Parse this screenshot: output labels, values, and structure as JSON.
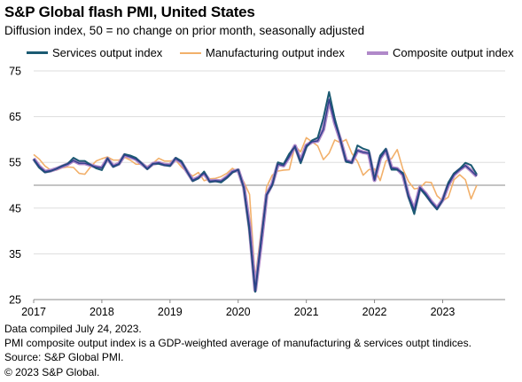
{
  "header": {
    "title": "S&P Global flash PMI, United States",
    "subtitle": "Diffusion index, 50 = no change on prior month, seasonally adjusted"
  },
  "footnotes": {
    "compiled": "Data compiled July 24, 2023.",
    "note": "PMI composite output index is a GDP-weighted average of manufacturing & services outpt tindices.",
    "source": "Source: S&P Global PMI.",
    "copyright": "© 2023 S&P Global."
  },
  "colors": {
    "services": "#1b5a72",
    "manufacturing": "#f2b06a",
    "composite": "#b089c9",
    "composite_core": "#2f3e8c",
    "grid": "#dddddd",
    "reference_line": "#8a8a8a"
  },
  "chart_data": {
    "type": "line",
    "title": "S&P Global flash PMI, United States",
    "subtitle": "Diffusion index, 50 = no change on prior month, seasonally adjusted",
    "x_start": "2017-01",
    "x_end": "2023-07",
    "frequency": "monthly",
    "ylim": [
      25,
      75
    ],
    "yticks": [
      25,
      35,
      45,
      55,
      65,
      75
    ],
    "xticks": [
      "2017",
      "2018",
      "2019",
      "2020",
      "2021",
      "2022",
      "2023"
    ],
    "reference_line": 50,
    "grid": "horizontal",
    "legend": "top",
    "series": [
      {
        "name": "Services output index",
        "values": [
          55.6,
          53.8,
          52.8,
          53.1,
          53.6,
          54.2,
          54.7,
          56.0,
          55.3,
          55.3,
          54.5,
          53.7,
          53.3,
          55.9,
          54.0,
          54.6,
          56.8,
          56.5,
          56.0,
          54.8,
          53.5,
          54.7,
          54.7,
          54.4,
          54.2,
          56.0,
          55.3,
          53.0,
          50.9,
          51.5,
          53.0,
          50.7,
          50.9,
          50.6,
          51.6,
          52.8,
          53.4,
          49.4,
          39.8,
          26.7,
          37.5,
          47.9,
          50.0,
          55.0,
          54.6,
          56.9,
          58.4,
          54.8,
          58.3,
          59.8,
          60.4,
          64.7,
          70.4,
          64.6,
          59.9,
          55.1,
          54.9,
          58.7,
          58.0,
          57.6,
          51.2,
          56.5,
          58.0,
          53.4,
          53.4,
          52.7,
          47.3,
          43.7,
          49.3,
          47.8,
          46.2,
          44.7,
          46.8,
          50.6,
          52.6,
          53.6,
          54.9,
          54.4,
          52.4
        ]
      },
      {
        "name": "Manufacturing output index",
        "values": [
          56.7,
          55.7,
          54.2,
          53.3,
          53.3,
          53.8,
          54.0,
          53.9,
          52.6,
          52.4,
          54.0,
          55.3,
          55.8,
          56.2,
          55.5,
          55.5,
          56.1,
          55.5,
          54.6,
          54.6,
          54.1,
          54.8,
          55.9,
          55.3,
          55.3,
          55.5,
          54.0,
          52.9,
          52.0,
          52.8,
          51.0,
          51.4,
          51.5,
          51.9,
          52.6,
          53.7,
          52.8,
          50.7,
          48.0,
          29.5,
          39.6,
          49.6,
          52.2,
          53.1,
          53.3,
          53.4,
          58.6,
          57.3,
          60.4,
          59.5,
          58.6,
          55.6,
          57.0,
          59.9,
          59.3,
          60.0,
          57.0,
          55.2,
          52.2,
          53.4,
          53.6,
          51.0,
          55.3,
          55.8,
          57.8,
          53.5,
          50.8,
          49.2,
          49.4,
          50.7,
          50.6,
          47.7,
          46.6,
          47.4,
          51.2,
          52.3,
          51.2,
          47.0,
          50.0
        ]
      },
      {
        "name": "Composite output index",
        "values": [
          55.8,
          54.1,
          53.0,
          53.2,
          53.6,
          54.1,
          54.6,
          55.4,
          54.8,
          54.8,
          54.4,
          54.0,
          53.8,
          55.8,
          54.2,
          54.7,
          56.6,
          56.2,
          55.7,
          54.7,
          53.7,
          54.7,
          54.9,
          54.5,
          54.4,
          55.8,
          55.0,
          53.0,
          51.1,
          51.7,
          52.6,
          50.9,
          51.0,
          50.9,
          51.8,
          53.0,
          53.3,
          49.6,
          40.9,
          27.0,
          37.0,
          47.9,
          50.3,
          54.6,
          54.3,
          56.3,
          58.6,
          55.3,
          58.7,
          59.5,
          59.7,
          62.2,
          68.7,
          63.7,
          59.9,
          55.4,
          55.0,
          57.6,
          57.2,
          57.0,
          51.1,
          55.9,
          57.7,
          53.8,
          53.6,
          52.3,
          47.7,
          44.6,
          49.5,
          48.2,
          46.4,
          45.0,
          46.8,
          50.1,
          52.3,
          53.4,
          54.3,
          53.2,
          52.0
        ]
      }
    ]
  }
}
